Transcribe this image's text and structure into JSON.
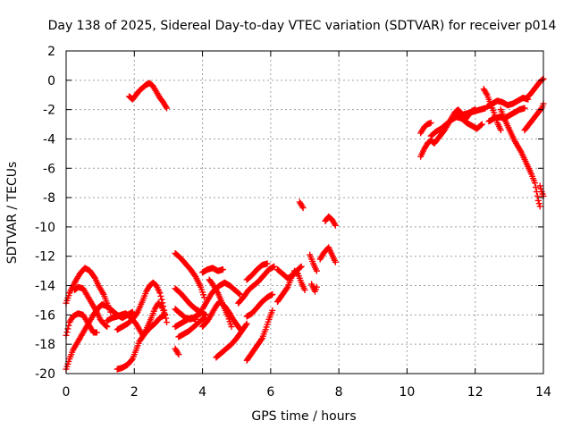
{
  "chart_data": {
    "type": "scatter",
    "title": "Day 138 of 2025, Sidereal Day-to-day VTEC variation (SDTVAR) for receiver p014",
    "xlabel": "GPS time / hours",
    "ylabel": "SDTVAR / TECUs",
    "xlim": [
      0,
      14
    ],
    "ylim": [
      -20,
      2
    ],
    "xticks": [
      "0",
      "2",
      "4",
      "6",
      "8",
      "10",
      "12",
      "14"
    ],
    "yticks": [
      "-20",
      "-18",
      "-16",
      "-14",
      "-12",
      "-10",
      "-8",
      "-6",
      "-4",
      "-2",
      "0",
      "2"
    ],
    "grid": true,
    "marker": "plus",
    "color": "#ff0000",
    "tracks": [
      [
        [
          0.0,
          -17.4
        ],
        [
          0.1,
          -16.5
        ],
        [
          0.2,
          -16.1
        ],
        [
          0.35,
          -15.9
        ],
        [
          0.5,
          -16.0
        ],
        [
          0.65,
          -16.6
        ],
        [
          0.8,
          -17.2
        ],
        [
          0.9,
          -17.2
        ]
      ],
      [
        [
          0.0,
          -19.7
        ],
        [
          0.1,
          -19.0
        ],
        [
          0.2,
          -18.4
        ],
        [
          0.35,
          -17.8
        ],
        [
          0.5,
          -17.2
        ],
        [
          0.65,
          -16.6
        ],
        [
          0.8,
          -16.0
        ],
        [
          0.95,
          -15.5
        ],
        [
          1.05,
          -15.3
        ]
      ],
      [
        [
          0.0,
          -15.2
        ],
        [
          0.1,
          -14.5
        ],
        [
          0.25,
          -13.8
        ],
        [
          0.4,
          -13.2
        ],
        [
          0.55,
          -12.8
        ],
        [
          0.7,
          -13.0
        ],
        [
          0.85,
          -13.5
        ],
        [
          0.95,
          -14.0
        ],
        [
          1.1,
          -14.6
        ],
        [
          1.2,
          -15.2
        ],
        [
          1.3,
          -15.8
        ]
      ],
      [
        [
          0.25,
          -14.3
        ],
        [
          0.35,
          -14.1
        ],
        [
          0.5,
          -14.2
        ],
        [
          0.6,
          -14.6
        ],
        [
          0.75,
          -15.2
        ],
        [
          0.9,
          -15.8
        ],
        [
          1.0,
          -16.3
        ],
        [
          1.1,
          -16.6
        ],
        [
          1.2,
          -16.8
        ]
      ],
      [
        [
          0.9,
          -15.6
        ],
        [
          1.05,
          -15.3
        ],
        [
          1.2,
          -15.4
        ],
        [
          1.35,
          -15.7
        ],
        [
          1.5,
          -16.0
        ],
        [
          1.65,
          -16.2
        ],
        [
          1.8,
          -16.0
        ],
        [
          1.95,
          -15.8
        ]
      ],
      [
        [
          1.2,
          -16.4
        ],
        [
          1.35,
          -16.2
        ],
        [
          1.5,
          -16.1
        ],
        [
          1.6,
          -16.0
        ],
        [
          1.75,
          -15.9
        ],
        [
          1.9,
          -16.2
        ],
        [
          2.05,
          -16.6
        ],
        [
          2.15,
          -17.0
        ],
        [
          2.25,
          -17.4
        ],
        [
          2.35,
          -17.0
        ],
        [
          2.5,
          -16.2
        ],
        [
          2.6,
          -15.6
        ],
        [
          2.7,
          -15.2
        ],
        [
          2.8,
          -15.4
        ],
        [
          2.9,
          -16.0
        ]
      ],
      [
        [
          1.5,
          -17.0
        ],
        [
          1.65,
          -16.8
        ],
        [
          1.8,
          -16.6
        ],
        [
          1.95,
          -16.3
        ],
        [
          2.1,
          -15.8
        ],
        [
          2.25,
          -15.0
        ],
        [
          2.35,
          -14.4
        ],
        [
          2.45,
          -14.0
        ],
        [
          2.55,
          -13.8
        ],
        [
          2.65,
          -14.0
        ],
        [
          2.75,
          -14.5
        ],
        [
          2.85,
          -15.4
        ],
        [
          2.95,
          -16.5
        ]
      ],
      [
        [
          1.5,
          -19.7
        ],
        [
          1.65,
          -19.6
        ],
        [
          1.8,
          -19.4
        ],
        [
          1.95,
          -19.0
        ],
        [
          2.05,
          -18.4
        ],
        [
          2.15,
          -17.8
        ],
        [
          2.3,
          -17.3
        ],
        [
          2.45,
          -16.9
        ],
        [
          2.6,
          -16.6
        ],
        [
          2.75,
          -16.2
        ],
        [
          2.9,
          -16.0
        ]
      ],
      [
        [
          1.85,
          -1.1
        ],
        [
          1.95,
          -1.3
        ],
        [
          2.05,
          -1.0
        ],
        [
          2.15,
          -0.7
        ],
        [
          2.25,
          -0.5
        ],
        [
          2.35,
          -0.3
        ],
        [
          2.45,
          -0.2
        ],
        [
          2.55,
          -0.4
        ],
        [
          2.65,
          -0.8
        ],
        [
          2.75,
          -1.2
        ],
        [
          2.85,
          -1.5
        ],
        [
          2.95,
          -1.9
        ]
      ],
      [
        [
          3.2,
          -11.8
        ],
        [
          3.35,
          -12.1
        ],
        [
          3.5,
          -12.5
        ],
        [
          3.65,
          -12.9
        ],
        [
          3.8,
          -13.4
        ],
        [
          3.95,
          -14.1
        ],
        [
          4.05,
          -14.8
        ]
      ],
      [
        [
          3.2,
          -14.2
        ],
        [
          3.35,
          -14.5
        ],
        [
          3.5,
          -14.9
        ],
        [
          3.65,
          -15.3
        ],
        [
          3.8,
          -15.6
        ],
        [
          3.95,
          -15.8
        ],
        [
          4.1,
          -16.0
        ]
      ],
      [
        [
          3.2,
          -15.6
        ],
        [
          3.35,
          -15.9
        ],
        [
          3.5,
          -16.2
        ],
        [
          3.65,
          -16.3
        ],
        [
          3.8,
          -16.1
        ],
        [
          3.95,
          -15.9
        ]
      ],
      [
        [
          3.2,
          -16.8
        ],
        [
          3.35,
          -16.6
        ],
        [
          3.5,
          -16.4
        ],
        [
          3.65,
          -16.2
        ],
        [
          3.8,
          -16.3
        ]
      ],
      [
        [
          3.2,
          -18.3
        ],
        [
          3.3,
          -18.7
        ]
      ],
      [
        [
          3.3,
          -17.5
        ],
        [
          3.45,
          -17.3
        ],
        [
          3.6,
          -17.1
        ],
        [
          3.75,
          -16.8
        ],
        [
          3.9,
          -16.5
        ],
        [
          4.05,
          -16.2
        ]
      ],
      [
        [
          4.0,
          -13.1
        ],
        [
          4.15,
          -12.9
        ],
        [
          4.3,
          -12.8
        ],
        [
          4.45,
          -13.0
        ],
        [
          4.6,
          -12.9
        ]
      ],
      [
        [
          4.0,
          -15.6
        ],
        [
          4.15,
          -15.0
        ],
        [
          4.25,
          -14.6
        ],
        [
          4.35,
          -14.3
        ],
        [
          4.5,
          -14.0
        ],
        [
          4.65,
          -13.8
        ],
        [
          4.8,
          -14.0
        ],
        [
          4.95,
          -14.3
        ],
        [
          5.1,
          -14.6
        ]
      ],
      [
        [
          4.0,
          -16.8
        ],
        [
          4.15,
          -16.4
        ],
        [
          4.3,
          -15.8
        ],
        [
          4.4,
          -15.4
        ],
        [
          4.5,
          -15.1
        ],
        [
          4.65,
          -15.4
        ],
        [
          4.8,
          -15.9
        ],
        [
          4.9,
          -16.3
        ],
        [
          5.05,
          -16.8
        ],
        [
          5.15,
          -17.1
        ]
      ],
      [
        [
          4.2,
          -13.6
        ],
        [
          4.3,
          -13.9
        ],
        [
          4.45,
          -14.5
        ],
        [
          4.6,
          -15.3
        ],
        [
          4.75,
          -16.1
        ],
        [
          4.85,
          -16.8
        ]
      ],
      [
        [
          4.4,
          -18.9
        ],
        [
          4.55,
          -18.6
        ],
        [
          4.7,
          -18.3
        ],
        [
          4.85,
          -18.0
        ],
        [
          5.0,
          -17.6
        ],
        [
          5.15,
          -17.1
        ],
        [
          5.3,
          -16.6
        ]
      ],
      [
        [
          5.05,
          -15.2
        ],
        [
          5.2,
          -14.8
        ],
        [
          5.35,
          -14.3
        ],
        [
          5.5,
          -14.0
        ],
        [
          5.65,
          -13.7
        ],
        [
          5.8,
          -13.3
        ],
        [
          5.95,
          -12.9
        ],
        [
          6.1,
          -12.7
        ]
      ],
      [
        [
          5.3,
          -16.1
        ],
        [
          5.45,
          -15.9
        ],
        [
          5.6,
          -15.5
        ],
        [
          5.75,
          -15.1
        ],
        [
          5.9,
          -14.8
        ],
        [
          6.05,
          -14.6
        ]
      ],
      [
        [
          5.3,
          -13.6
        ],
        [
          5.45,
          -13.3
        ],
        [
          5.6,
          -12.9
        ],
        [
          5.75,
          -12.6
        ],
        [
          5.9,
          -12.5
        ]
      ],
      [
        [
          5.3,
          -19.1
        ],
        [
          5.45,
          -18.6
        ],
        [
          5.6,
          -18.1
        ],
        [
          5.75,
          -17.6
        ],
        [
          5.85,
          -17.0
        ],
        [
          5.95,
          -16.3
        ],
        [
          6.05,
          -15.7
        ]
      ],
      [
        [
          6.2,
          -15.1
        ],
        [
          6.35,
          -14.6
        ],
        [
          6.5,
          -14.1
        ],
        [
          6.6,
          -13.5
        ],
        [
          6.7,
          -13.0
        ],
        [
          6.8,
          -13.2
        ],
        [
          6.9,
          -13.8
        ],
        [
          7.0,
          -14.3
        ]
      ],
      [
        [
          6.2,
          -12.9
        ],
        [
          6.35,
          -13.2
        ],
        [
          6.5,
          -13.5
        ],
        [
          6.65,
          -13.3
        ],
        [
          6.8,
          -12.9
        ],
        [
          6.9,
          -12.7
        ]
      ],
      [
        [
          6.85,
          -8.3
        ],
        [
          6.95,
          -8.7
        ]
      ],
      [
        [
          7.15,
          -11.9
        ],
        [
          7.25,
          -12.5
        ],
        [
          7.35,
          -13.0
        ]
      ],
      [
        [
          7.2,
          -13.9
        ],
        [
          7.3,
          -14.4
        ],
        [
          7.35,
          -14.1
        ]
      ],
      [
        [
          7.45,
          -12.2
        ],
        [
          7.55,
          -11.8
        ],
        [
          7.7,
          -11.4
        ],
        [
          7.8,
          -11.9
        ],
        [
          7.9,
          -12.4
        ]
      ],
      [
        [
          7.6,
          -9.6
        ],
        [
          7.7,
          -9.3
        ],
        [
          7.8,
          -9.5
        ],
        [
          7.9,
          -9.9
        ]
      ],
      [
        [
          10.4,
          -5.2
        ],
        [
          10.5,
          -4.7
        ],
        [
          10.6,
          -4.3
        ],
        [
          10.7,
          -4.1
        ],
        [
          10.8,
          -4.3
        ],
        [
          10.9,
          -4.0
        ],
        [
          11.0,
          -3.7
        ],
        [
          11.1,
          -3.4
        ],
        [
          11.2,
          -3.0
        ],
        [
          11.3,
          -2.6
        ],
        [
          11.4,
          -2.2
        ],
        [
          11.5,
          -2.0
        ],
        [
          11.6,
          -2.3
        ],
        [
          11.7,
          -2.7
        ],
        [
          11.8,
          -2.4
        ],
        [
          11.9,
          -2.1
        ],
        [
          12.0,
          -2.0
        ]
      ],
      [
        [
          10.4,
          -3.6
        ],
        [
          10.5,
          -3.2
        ],
        [
          10.6,
          -3.0
        ],
        [
          10.7,
          -2.9
        ]
      ],
      [
        [
          10.7,
          -3.8
        ],
        [
          10.85,
          -3.5
        ],
        [
          11.0,
          -3.3
        ],
        [
          11.15,
          -3.0
        ],
        [
          11.3,
          -2.7
        ],
        [
          11.45,
          -2.5
        ],
        [
          11.6,
          -2.6
        ],
        [
          11.75,
          -2.9
        ],
        [
          11.9,
          -3.1
        ],
        [
          12.05,
          -3.3
        ],
        [
          12.2,
          -3.0
        ]
      ],
      [
        [
          11.4,
          -2.5
        ],
        [
          11.55,
          -2.4
        ],
        [
          11.7,
          -2.3
        ],
        [
          11.85,
          -2.2
        ],
        [
          12.0,
          -2.1
        ],
        [
          12.15,
          -2.0
        ],
        [
          12.3,
          -1.9
        ]
      ],
      [
        [
          12.25,
          -0.6
        ],
        [
          12.35,
          -1.0
        ],
        [
          12.45,
          -1.6
        ],
        [
          12.55,
          -2.2
        ],
        [
          12.65,
          -2.9
        ],
        [
          12.75,
          -3.4
        ]
      ],
      [
        [
          12.35,
          -1.8
        ],
        [
          12.5,
          -1.6
        ],
        [
          12.65,
          -1.4
        ],
        [
          12.8,
          -1.5
        ],
        [
          12.95,
          -1.7
        ],
        [
          13.1,
          -1.6
        ],
        [
          13.25,
          -1.4
        ],
        [
          13.4,
          -1.2
        ],
        [
          13.55,
          -1.3
        ]
      ],
      [
        [
          12.4,
          -2.8
        ],
        [
          12.55,
          -2.6
        ],
        [
          12.7,
          -2.5
        ],
        [
          12.85,
          -2.6
        ],
        [
          13.0,
          -2.4
        ],
        [
          13.15,
          -2.2
        ],
        [
          13.3,
          -2.0
        ],
        [
          13.45,
          -1.9
        ]
      ],
      [
        [
          12.75,
          -2.0
        ],
        [
          12.85,
          -2.6
        ],
        [
          12.95,
          -3.1
        ],
        [
          13.05,
          -3.6
        ],
        [
          13.15,
          -4.1
        ],
        [
          13.25,
          -4.5
        ],
        [
          13.35,
          -4.9
        ],
        [
          13.45,
          -5.4
        ],
        [
          13.55,
          -5.9
        ],
        [
          13.65,
          -6.4
        ],
        [
          13.75,
          -7.0
        ],
        [
          13.8,
          -7.6
        ],
        [
          13.85,
          -8.2
        ],
        [
          13.9,
          -8.6
        ]
      ],
      [
        [
          13.5,
          -1.2
        ],
        [
          13.6,
          -1.0
        ],
        [
          13.7,
          -0.7
        ],
        [
          13.8,
          -0.4
        ],
        [
          13.9,
          -0.1
        ],
        [
          14.0,
          0.1
        ]
      ],
      [
        [
          13.45,
          -3.4
        ],
        [
          13.55,
          -3.1
        ],
        [
          13.65,
          -2.8
        ],
        [
          13.75,
          -2.5
        ],
        [
          13.85,
          -2.2
        ],
        [
          13.95,
          -1.9
        ],
        [
          14.0,
          -1.6
        ]
      ],
      [
        [
          13.9,
          -7.2
        ],
        [
          13.95,
          -7.6
        ],
        [
          14.0,
          -7.9
        ]
      ]
    ]
  }
}
